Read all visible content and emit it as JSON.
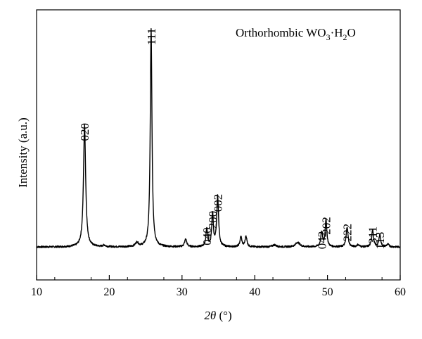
{
  "chart_data": {
    "type": "line",
    "title": "",
    "legend": {
      "text": "Orthorhombic WO",
      "sub1": "3",
      "dot": "·H",
      "sub2": "2",
      "tail": "O",
      "placement": "top-right"
    },
    "xlabel": {
      "italic": "2θ",
      "rest": " (°)"
    },
    "ylabel": "Intensity (a.u.)",
    "xlim": [
      10,
      60
    ],
    "ylim": [
      0,
      100
    ],
    "x_ticks": [
      "10",
      "20",
      "30",
      "40",
      "50",
      "60"
    ],
    "x_tick_values": [
      10,
      20,
      30,
      40,
      50,
      60
    ],
    "x_minor_step": 2.5,
    "y_ticks_shown": false,
    "grid": false,
    "baseline": 13,
    "noise": 0.35,
    "peaks": [
      {
        "x": 16.6,
        "h": 48,
        "w": 0.18
      },
      {
        "x": 19.3,
        "h": 0.6,
        "w": 0.2
      },
      {
        "x": 23.8,
        "h": 1.6,
        "w": 0.25
      },
      {
        "x": 25.75,
        "h": 86,
        "w": 0.14
      },
      {
        "x": 30.5,
        "h": 3,
        "w": 0.18
      },
      {
        "x": 33.4,
        "h": 7,
        "w": 0.14
      },
      {
        "x": 34.2,
        "h": 13,
        "w": 0.13
      },
      {
        "x": 34.9,
        "h": 20,
        "w": 0.15
      },
      {
        "x": 38.1,
        "h": 4,
        "w": 0.15
      },
      {
        "x": 38.8,
        "h": 4.2,
        "w": 0.15
      },
      {
        "x": 42.7,
        "h": 0.8,
        "w": 0.3
      },
      {
        "x": 45.9,
        "h": 1.8,
        "w": 0.35
      },
      {
        "x": 49.2,
        "h": 5.5,
        "w": 0.16
      },
      {
        "x": 49.8,
        "h": 10.5,
        "w": 0.14
      },
      {
        "x": 52.7,
        "h": 8,
        "w": 0.15
      },
      {
        "x": 54.2,
        "h": 0.8,
        "w": 0.2
      },
      {
        "x": 56.2,
        "h": 7,
        "w": 0.14
      },
      {
        "x": 57.2,
        "h": 5,
        "w": 0.14
      },
      {
        "x": 58.3,
        "h": 1,
        "w": 0.2
      }
    ],
    "peak_labels": [
      {
        "text": "020",
        "x": 16.6,
        "y": 62.5
      },
      {
        "text": "111",
        "x": 25.75,
        "y": 100
      },
      {
        "text": "040",
        "x": 33.4,
        "y": 21.3
      },
      {
        "text": "200",
        "x": 34.2,
        "y": 27.8
      },
      {
        "text": "002",
        "x": 34.9,
        "y": 34.5
      },
      {
        "text": "042",
        "x": 49.2,
        "y": 19.8
      },
      {
        "text": "202",
        "x": 49.8,
        "y": 25.5
      },
      {
        "text": "222",
        "x": 52.7,
        "y": 22.8
      },
      {
        "text": "311",
        "x": 56.2,
        "y": 21.7
      },
      {
        "text": "113",
        "x": 57.2,
        "y": 19.5
      }
    ]
  }
}
